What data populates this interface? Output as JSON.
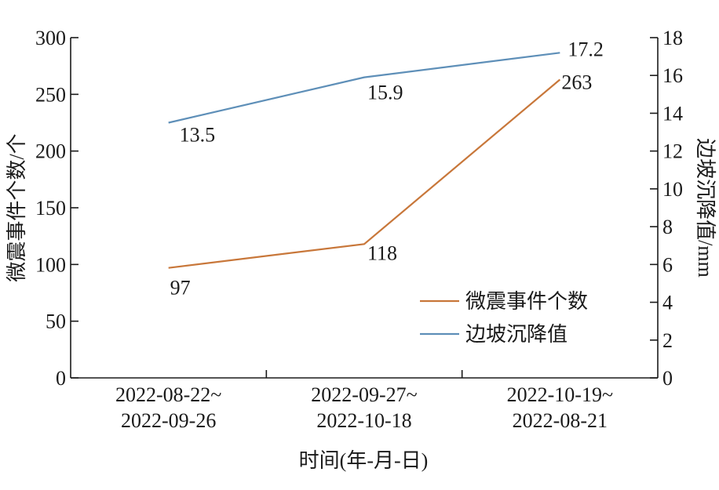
{
  "chart_data": {
    "type": "line",
    "categories": [
      [
        "2022-08-22~",
        "2022-09-26"
      ],
      [
        "2022-09-27~",
        "2022-10-18"
      ],
      [
        "2022-10-19~",
        "2022-08-21"
      ]
    ],
    "xlabel": "时间(年-月-日)",
    "ylabel_left": "微震事件个数/个",
    "ylabel_right": "边坡沉降值/mm",
    "ylim_left": [
      0,
      300
    ],
    "yticks_left": [
      0,
      50,
      100,
      150,
      200,
      250,
      300
    ],
    "ylim_right": [
      0,
      18
    ],
    "yticks_right": [
      0,
      2,
      4,
      6,
      8,
      10,
      12,
      14,
      16,
      18
    ],
    "grid": false,
    "legend_position": "right-middle",
    "series": [
      {
        "name": "微震事件个数",
        "axis": "left",
        "color": "#c8773a",
        "values": [
          97,
          118,
          263
        ],
        "labels": [
          "97",
          "118",
          "263"
        ]
      },
      {
        "name": "边坡沉降值",
        "axis": "right",
        "color": "#5e8fb8",
        "values": [
          13.5,
          15.9,
          17.2
        ],
        "labels": [
          "13.5",
          "15.9",
          "17.2"
        ]
      }
    ]
  }
}
